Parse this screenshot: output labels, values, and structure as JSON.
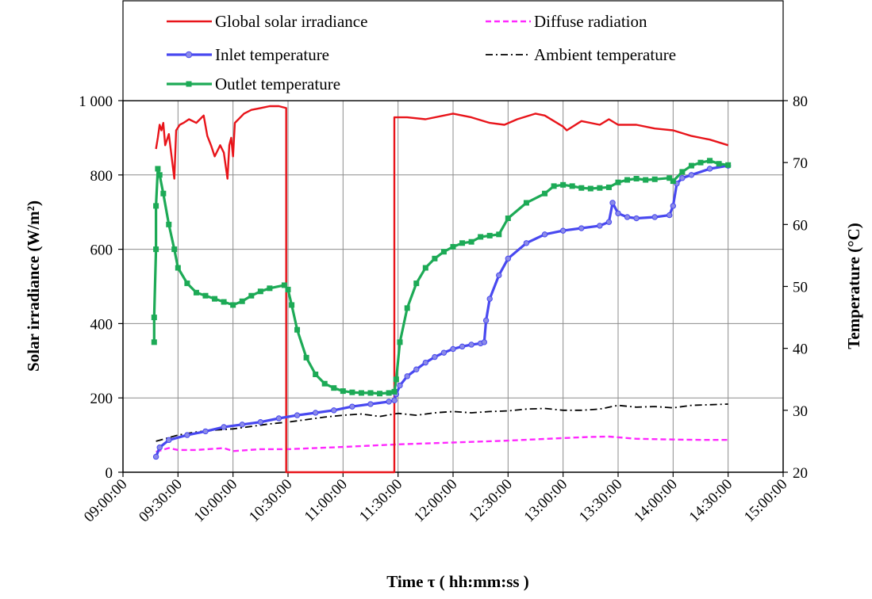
{
  "chart_data": {
    "type": "line",
    "title": "",
    "xlabel": "Time τ  ( hh:mm:ss )",
    "ylabel": "Solar irradiance (W/m²)",
    "ylabel_right": "Temperature  (°C)",
    "xlim_minutes": [
      540,
      900
    ],
    "x_ticks": [
      "09:00:00",
      "09:30:00",
      "10:00:00",
      "10:30:00",
      "11:00:00",
      "11:30:00",
      "12:00:00",
      "12:30:00",
      "13:00:00",
      "13:30:00",
      "14:00:00",
      "14:30:00",
      "15:00:00"
    ],
    "ylim_left": [
      0,
      1000
    ],
    "y_ticks_left": [
      "0",
      "200",
      "400",
      "600",
      "800",
      "1 000"
    ],
    "ylim_right": [
      20,
      80
    ],
    "y_ticks_right": [
      "20",
      "30",
      "40",
      "50",
      "60",
      "70",
      "80"
    ],
    "grid": true,
    "legend_position": "top",
    "series": [
      {
        "name": "Global solar irradiance",
        "axis": "left",
        "color": "#e8141a",
        "style": "solid",
        "x": [
          "09:18",
          "09:19",
          "09:20",
          "09:21",
          "09:22",
          "09:23",
          "09:25",
          "09:27",
          "09:28",
          "09:29",
          "09:31",
          "09:33",
          "09:36",
          "09:40",
          "09:44",
          "09:46",
          "09:48",
          "09:50",
          "09:53",
          "09:55",
          "09:57",
          "09:58",
          "09:59",
          "10:00",
          "10:01",
          "10:03",
          "10:06",
          "10:10",
          "10:15",
          "10:20",
          "10:25",
          "10:29",
          "10:29",
          "10:58",
          "11:28",
          "11:28",
          "11:35",
          "11:45",
          "12:00",
          "12:10",
          "12:20",
          "12:28",
          "12:35",
          "12:45",
          "12:50",
          "13:00",
          "13:02",
          "13:10",
          "13:20",
          "13:25",
          "13:30",
          "13:40",
          "13:50",
          "14:00",
          "14:10",
          "14:20",
          "14:30"
        ],
        "values": [
          870,
          900,
          935,
          920,
          940,
          880,
          910,
          830,
          790,
          920,
          935,
          940,
          950,
          940,
          960,
          905,
          880,
          850,
          880,
          860,
          790,
          880,
          900,
          850,
          940,
          950,
          965,
          975,
          980,
          985,
          985,
          980,
          0,
          0,
          0,
          955,
          955,
          950,
          965,
          955,
          940,
          935,
          950,
          965,
          960,
          930,
          920,
          945,
          935,
          950,
          935,
          935,
          925,
          920,
          905,
          895,
          880
        ]
      },
      {
        "name": "Diffuse radiation",
        "axis": "left",
        "color": "#ff28ff",
        "style": "dashed",
        "x": [
          "09:18",
          "09:25",
          "09:30",
          "09:40",
          "09:55",
          "10:00",
          "10:15",
          "10:30",
          "11:00",
          "11:30",
          "12:00",
          "12:30",
          "13:00",
          "13:15",
          "13:25",
          "13:40",
          "14:00",
          "14:15",
          "14:30"
        ],
        "values": [
          55,
          65,
          60,
          60,
          65,
          57,
          62,
          62,
          68,
          75,
          80,
          85,
          92,
          95,
          96,
          90,
          88,
          87,
          87
        ]
      },
      {
        "name": "Inlet temperature",
        "axis": "right",
        "color": "#4848f0",
        "style": "solid-markers",
        "x": [
          "09:18",
          "09:20",
          "09:25",
          "09:35",
          "09:45",
          "09:55",
          "10:05",
          "10:15",
          "10:25",
          "10:35",
          "10:45",
          "10:55",
          "11:05",
          "11:15",
          "11:25",
          "11:28",
          "11:29",
          "11:31",
          "11:35",
          "11:40",
          "11:45",
          "11:50",
          "11:55",
          "12:00",
          "12:05",
          "12:10",
          "12:15",
          "12:17",
          "12:18",
          "12:20",
          "12:25",
          "12:30",
          "12:40",
          "12:50",
          "13:00",
          "13:10",
          "13:20",
          "13:25",
          "13:27",
          "13:30",
          "13:35",
          "13:40",
          "13:50",
          "13:58",
          "14:00",
          "14:02",
          "14:05",
          "14:10",
          "14:20",
          "14:30"
        ],
        "values": [
          22.5,
          24.0,
          25.2,
          26.0,
          26.6,
          27.3,
          27.7,
          28.1,
          28.7,
          29.2,
          29.6,
          30.0,
          30.6,
          31.0,
          31.4,
          31.6,
          32.6,
          34.0,
          35.5,
          36.6,
          37.7,
          38.6,
          39.3,
          39.9,
          40.3,
          40.6,
          40.8,
          41.0,
          44.5,
          48.0,
          51.8,
          54.5,
          57.0,
          58.4,
          59.0,
          59.4,
          59.8,
          60.4,
          63.5,
          61.8,
          61.2,
          61.0,
          61.2,
          61.5,
          63.0,
          66.6,
          67.5,
          68.0,
          69.0,
          69.5
        ]
      },
      {
        "name": "Ambient temperature",
        "axis": "right",
        "color": "#000000",
        "style": "dash-dot",
        "x": [
          "09:18",
          "09:30",
          "09:40",
          "09:50",
          "10:00",
          "10:10",
          "10:20",
          "10:30",
          "10:40",
          "10:50",
          "11:00",
          "11:10",
          "11:20",
          "11:30",
          "11:40",
          "11:50",
          "12:00",
          "12:10",
          "12:20",
          "12:30",
          "12:40",
          "12:50",
          "13:00",
          "13:10",
          "13:20",
          "13:30",
          "13:40",
          "13:50",
          "14:00",
          "14:10",
          "14:20",
          "14:30"
        ],
        "values": [
          25.0,
          26.0,
          26.5,
          26.8,
          27.0,
          27.4,
          27.8,
          28.1,
          28.5,
          28.9,
          29.2,
          29.4,
          29.0,
          29.5,
          29.2,
          29.6,
          29.8,
          29.6,
          29.8,
          29.9,
          30.2,
          30.3,
          30.0,
          30.0,
          30.2,
          30.8,
          30.5,
          30.6,
          30.4,
          30.8,
          30.9,
          31.0
        ]
      },
      {
        "name": "Outlet temperature",
        "axis": "right",
        "color": "#1daa56",
        "style": "solid-markers",
        "x": [
          "09:17",
          "09:17",
          "09:18",
          "09:18",
          "09:19",
          "09:20",
          "09:22",
          "09:25",
          "09:28",
          "09:30",
          "09:35",
          "09:40",
          "09:45",
          "09:50",
          "09:55",
          "10:00",
          "10:05",
          "10:10",
          "10:15",
          "10:20",
          "10:28",
          "10:30",
          "10:32",
          "10:35",
          "10:40",
          "10:45",
          "10:50",
          "10:55",
          "11:00",
          "11:05",
          "11:10",
          "11:15",
          "11:20",
          "11:25",
          "11:28",
          "11:29",
          "11:31",
          "11:35",
          "11:40",
          "11:45",
          "11:50",
          "11:55",
          "12:00",
          "12:05",
          "12:10",
          "12:15",
          "12:20",
          "12:25",
          "12:30",
          "12:40",
          "12:50",
          "12:55",
          "13:00",
          "13:05",
          "13:10",
          "13:15",
          "13:20",
          "13:25",
          "13:30",
          "13:35",
          "13:40",
          "13:45",
          "13:50",
          "13:58",
          "14:00",
          "14:05",
          "14:10",
          "14:15",
          "14:20",
          "14:25",
          "14:30"
        ],
        "values": [
          41.0,
          45.0,
          56.0,
          63.0,
          69.0,
          68.0,
          65.0,
          60.0,
          56.0,
          53.0,
          50.5,
          49.0,
          48.5,
          48.0,
          47.5,
          47.0,
          47.6,
          48.5,
          49.2,
          49.7,
          50.2,
          49.5,
          47.0,
          43.0,
          38.5,
          35.8,
          34.3,
          33.6,
          33.1,
          32.9,
          32.8,
          32.8,
          32.7,
          32.8,
          33.0,
          35.0,
          41.0,
          46.5,
          50.5,
          53.0,
          54.5,
          55.6,
          56.4,
          57.0,
          57.2,
          58.0,
          58.2,
          58.4,
          61.0,
          63.5,
          65.0,
          66.2,
          66.4,
          66.2,
          65.9,
          65.8,
          65.9,
          66.0,
          66.8,
          67.2,
          67.4,
          67.2,
          67.3,
          67.5,
          67.0,
          68.5,
          69.5,
          70.0,
          70.3,
          69.8,
          69.6
        ]
      }
    ]
  },
  "legend": {
    "items": [
      {
        "label": "Global solar irradiance",
        "color": "#e8141a",
        "style": "solid"
      },
      {
        "label": "Diffuse radiation",
        "color": "#ff28ff",
        "style": "dashed"
      },
      {
        "label": "Inlet temperature",
        "color": "#4848f0",
        "style": "solid-markers"
      },
      {
        "label": "Ambient temperature",
        "color": "#000000",
        "style": "dash-dot"
      },
      {
        "label": "Outlet temperature",
        "color": "#1daa56",
        "style": "solid-markers"
      }
    ]
  }
}
